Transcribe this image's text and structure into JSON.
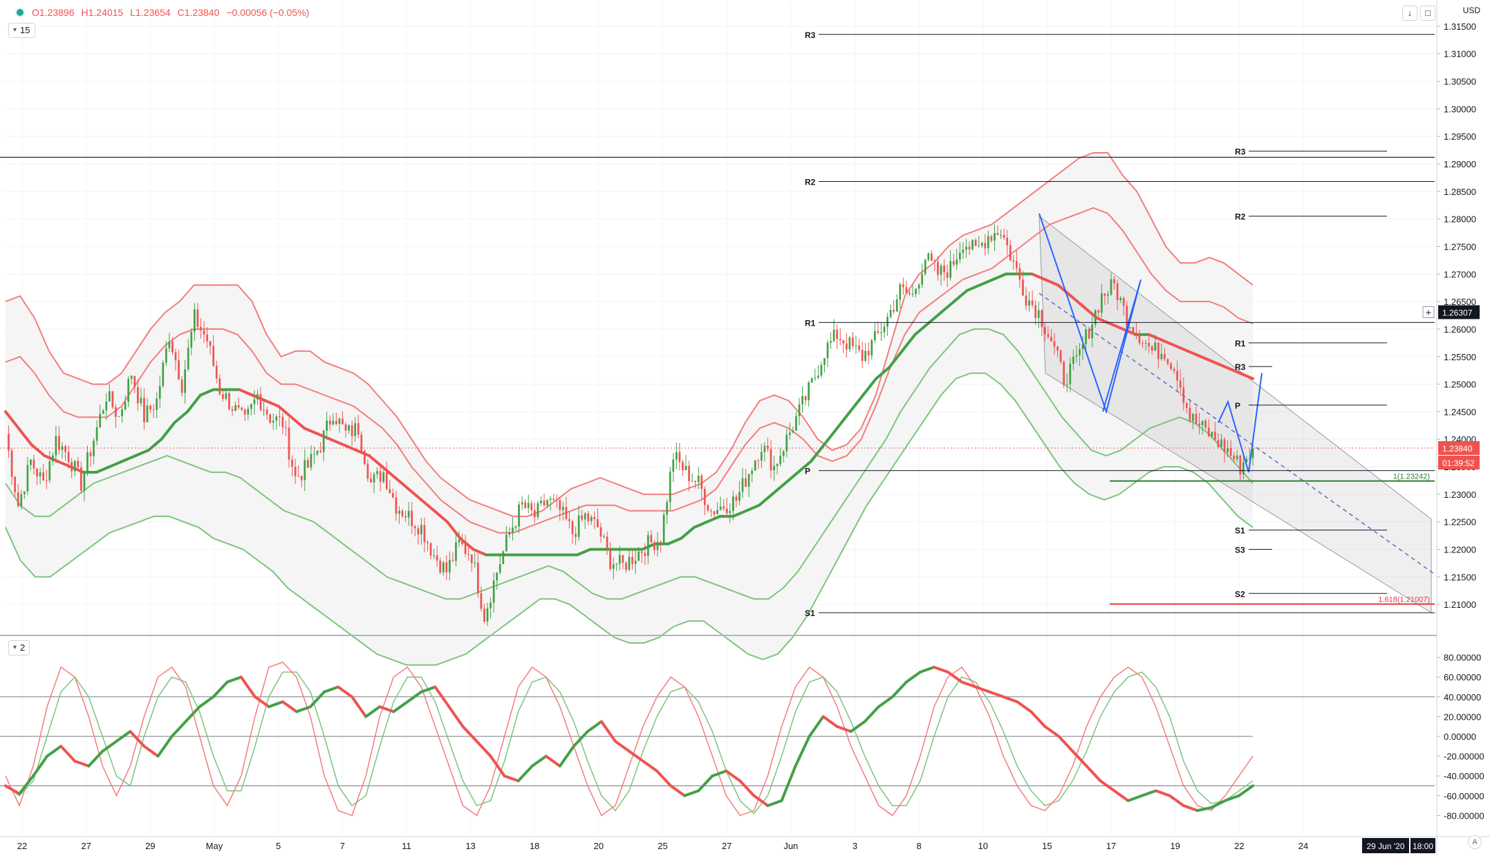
{
  "toolbar": {
    "ohlc": {
      "open": "O1.23896",
      "high": "H1.24015",
      "low": "L1.23654",
      "close": "C1.23840",
      "change": "−0.00056 (−0.05%)"
    },
    "price_pane_tag": "15",
    "osc_pane_tag": "2",
    "currency": "USD",
    "icons": [
      "circle-status-icon",
      "chevron-down-icon",
      "download-arrow-icon",
      "fullscreen-icon",
      "crosshair-plus-icon",
      "auto-scale-icon"
    ],
    "auto_label": "A"
  },
  "colors": {
    "up": "#26a69a",
    "down": "#ef5350",
    "ma_up": "#43a047",
    "ma_down": "#ef5350",
    "band_red": "#f47c7c",
    "band_green": "#7cc47c",
    "blue": "#2962ff",
    "dark": "#131722",
    "fib_green": "#2e7d32",
    "fib_red": "#e53935"
  },
  "chart_data": {
    "type": "candlestick",
    "y_axis": {
      "min": 1.2045,
      "max": 1.3195,
      "ticks": [
        "1.31500",
        "1.31000",
        "1.30500",
        "1.30000",
        "1.29500",
        "1.29000",
        "1.28500",
        "1.28000",
        "1.27500",
        "1.27000",
        "1.26500",
        "1.26000",
        "1.25500",
        "1.25000",
        "1.24500",
        "1.24000",
        "1.23500",
        "1.23000",
        "1.22500",
        "1.22000",
        "1.21500",
        "1.21000"
      ]
    },
    "x_axis": {
      "ticks": [
        "22",
        "27",
        "29",
        "May",
        "5",
        "7",
        "11",
        "13",
        "18",
        "20",
        "25",
        "27",
        "Jun",
        "3",
        "8",
        "10",
        "15",
        "17",
        "19",
        "22",
        "24"
      ],
      "cursor_date": "29 Jun '20",
      "cursor_time": "18:00"
    },
    "price_markers": [
      {
        "price": 1.26307,
        "label": "1.26307",
        "kind": "crosshair"
      },
      {
        "price": 1.2384,
        "label": "1.23840",
        "kind": "last",
        "countdown": "01:39:52"
      }
    ],
    "close_path": [
      1.241,
      1.228,
      1.236,
      1.232,
      1.24,
      1.237,
      1.232,
      1.24,
      1.248,
      1.244,
      1.252,
      1.244,
      1.247,
      1.259,
      1.25,
      1.262,
      1.258,
      1.249,
      1.246,
      1.243,
      1.248,
      1.244,
      1.243,
      1.233,
      1.235,
      1.239,
      1.245,
      1.241,
      1.242,
      1.232,
      1.234,
      1.228,
      1.226,
      1.224,
      1.219,
      1.216,
      1.221,
      1.219,
      1.208,
      1.216,
      1.223,
      1.228,
      1.226,
      1.229,
      1.227,
      1.223,
      1.226,
      1.224,
      1.218,
      1.217,
      1.219,
      1.221,
      1.222,
      1.237,
      1.234,
      1.232,
      1.227,
      1.228,
      1.229,
      1.234,
      1.239,
      1.235,
      1.24,
      1.245,
      1.25,
      1.256,
      1.259,
      1.257,
      1.255,
      1.258,
      1.262,
      1.267,
      1.266,
      1.273,
      1.27,
      1.271,
      1.276,
      1.274,
      1.277,
      1.278,
      1.272,
      1.266,
      1.263,
      1.258,
      1.251,
      1.254,
      1.26,
      1.266,
      1.268,
      1.262,
      1.259,
      1.256,
      1.256,
      1.252,
      1.244,
      1.242,
      1.24,
      1.238,
      1.235,
      1.2384
    ],
    "ma_series": [
      {
        "name": "",
        "values": [
          1.245,
          1.242,
          1.239,
          1.237,
          1.236,
          1.235,
          1.234,
          1.234,
          1.235,
          1.236,
          1.237,
          1.238,
          1.24,
          1.243,
          1.245,
          1.248,
          1.249,
          1.249,
          1.249,
          1.248,
          1.247,
          1.246,
          1.244,
          1.242,
          1.241,
          1.24,
          1.239,
          1.238,
          1.237,
          1.235,
          1.233,
          1.231,
          1.229,
          1.227,
          1.225,
          1.222,
          1.22,
          1.219,
          1.219,
          1.219,
          1.219,
          1.219,
          1.219,
          1.219,
          1.219,
          1.22,
          1.22,
          1.22,
          1.22,
          1.22,
          1.221,
          1.221,
          1.222,
          1.224,
          1.225,
          1.226,
          1.226,
          1.227,
          1.228,
          1.23,
          1.232,
          1.234,
          1.236,
          1.239,
          1.242,
          1.245,
          1.248,
          1.251,
          1.253,
          1.256,
          1.259,
          1.261,
          1.263,
          1.265,
          1.267,
          1.268,
          1.269,
          1.27,
          1.27,
          1.27,
          1.269,
          1.268,
          1.266,
          1.264,
          1.262,
          1.261,
          1.26,
          1.259,
          1.259,
          1.258,
          1.257,
          1.256,
          1.255,
          1.254,
          1.253,
          1.252,
          1.251
        ]
      }
    ],
    "bands": {
      "outer_upper": [
        1.265,
        1.266,
        1.262,
        1.256,
        1.252,
        1.251,
        1.25,
        1.25,
        1.252,
        1.256,
        1.26,
        1.263,
        1.265,
        1.268,
        1.268,
        1.268,
        1.268,
        1.265,
        1.259,
        1.255,
        1.256,
        1.256,
        1.254,
        1.253,
        1.252,
        1.25,
        1.247,
        1.244,
        1.24,
        1.236,
        1.233,
        1.231,
        1.229,
        1.228,
        1.227,
        1.226,
        1.226,
        1.227,
        1.229,
        1.231,
        1.232,
        1.233,
        1.232,
        1.231,
        1.23,
        1.23,
        1.23,
        1.231,
        1.232,
        1.234,
        1.238,
        1.243,
        1.247,
        1.248,
        1.247,
        1.244,
        1.24,
        1.238,
        1.239,
        1.242,
        1.248,
        1.257,
        1.266,
        1.27,
        1.272,
        1.275,
        1.277,
        1.278,
        1.279,
        1.281,
        1.283,
        1.285,
        1.287,
        1.289,
        1.291,
        1.292,
        1.292,
        1.288,
        1.285,
        1.28,
        1.275,
        1.272,
        1.272,
        1.273,
        1.272,
        1.27,
        1.268
      ],
      "inner_upper": [
        1.254,
        1.255,
        1.252,
        1.248,
        1.245,
        1.244,
        1.244,
        1.244,
        1.246,
        1.25,
        1.254,
        1.257,
        1.259,
        1.26,
        1.26,
        1.26,
        1.259,
        1.256,
        1.252,
        1.25,
        1.25,
        1.249,
        1.248,
        1.247,
        1.246,
        1.244,
        1.242,
        1.239,
        1.235,
        1.232,
        1.229,
        1.227,
        1.225,
        1.224,
        1.223,
        1.223,
        1.224,
        1.225,
        1.226,
        1.227,
        1.228,
        1.228,
        1.228,
        1.227,
        1.227,
        1.227,
        1.227,
        1.228,
        1.229,
        1.231,
        1.235,
        1.239,
        1.242,
        1.243,
        1.242,
        1.24,
        1.237,
        1.236,
        1.237,
        1.24,
        1.246,
        1.253,
        1.259,
        1.263,
        1.265,
        1.267,
        1.269,
        1.27,
        1.271,
        1.273,
        1.275,
        1.277,
        1.279,
        1.28,
        1.281,
        1.282,
        1.281,
        1.278,
        1.274,
        1.27,
        1.267,
        1.265,
        1.265,
        1.265,
        1.264,
        1.262,
        1.261
      ],
      "inner_lower": [
        1.232,
        1.228,
        1.226,
        1.226,
        1.228,
        1.23,
        1.232,
        1.233,
        1.234,
        1.235,
        1.236,
        1.237,
        1.236,
        1.235,
        1.234,
        1.234,
        1.233,
        1.231,
        1.229,
        1.227,
        1.226,
        1.225,
        1.223,
        1.221,
        1.219,
        1.217,
        1.215,
        1.214,
        1.213,
        1.212,
        1.211,
        1.211,
        1.212,
        1.213,
        1.214,
        1.215,
        1.216,
        1.217,
        1.216,
        1.214,
        1.212,
        1.211,
        1.211,
        1.212,
        1.213,
        1.214,
        1.215,
        1.215,
        1.214,
        1.213,
        1.212,
        1.211,
        1.211,
        1.213,
        1.216,
        1.22,
        1.224,
        1.228,
        1.232,
        1.236,
        1.24,
        1.245,
        1.249,
        1.253,
        1.256,
        1.259,
        1.26,
        1.26,
        1.259,
        1.256,
        1.252,
        1.248,
        1.244,
        1.241,
        1.238,
        1.237,
        1.238,
        1.24,
        1.242,
        1.243,
        1.244,
        1.243,
        1.241,
        1.238,
        1.235,
        1.232
      ],
      "outer_lower": [
        1.224,
        1.218,
        1.215,
        1.215,
        1.217,
        1.219,
        1.221,
        1.223,
        1.224,
        1.225,
        1.226,
        1.226,
        1.225,
        1.224,
        1.222,
        1.221,
        1.22,
        1.218,
        1.216,
        1.213,
        1.211,
        1.209,
        1.207,
        1.205,
        1.203,
        1.201,
        1.2,
        1.199,
        1.199,
        1.199,
        1.2,
        1.201,
        1.203,
        1.205,
        1.207,
        1.209,
        1.211,
        1.211,
        1.21,
        1.208,
        1.206,
        1.204,
        1.203,
        1.203,
        1.204,
        1.206,
        1.207,
        1.207,
        1.205,
        1.203,
        1.201,
        1.2,
        1.201,
        1.204,
        1.208,
        1.213,
        1.218,
        1.223,
        1.228,
        1.232,
        1.236,
        1.24,
        1.244,
        1.248,
        1.251,
        1.252,
        1.252,
        1.25,
        1.247,
        1.243,
        1.239,
        1.235,
        1.232,
        1.23,
        1.229,
        1.23,
        1.232,
        1.234,
        1.235,
        1.235,
        1.234,
        1.232,
        1.229,
        1.226,
        1.224
      ]
    },
    "pivot_levels": [
      {
        "label": "R3",
        "price": 1.3135,
        "segment": "left"
      },
      {
        "label": "R2",
        "price": 1.2868,
        "segment": "left"
      },
      {
        "label": "R1",
        "price": 1.2612,
        "segment": "left"
      },
      {
        "label": "P",
        "price": 1.2343,
        "segment": "left"
      },
      {
        "label": "S1",
        "price": 1.2085,
        "segment": "left"
      },
      {
        "label": "R3",
        "price": 1.2923,
        "segment": "right"
      },
      {
        "label": "R2",
        "price": 1.2805,
        "segment": "right"
      },
      {
        "label": "R1",
        "price": 1.2575,
        "segment": "right"
      },
      {
        "label": "R3",
        "price": 1.2532,
        "segment": "right_short"
      },
      {
        "label": "P",
        "price": 1.2462,
        "segment": "right"
      },
      {
        "label": "S1",
        "price": 1.2235,
        "segment": "right"
      },
      {
        "label": "S3",
        "price": 1.22,
        "segment": "right_short"
      },
      {
        "label": "S2",
        "price": 1.212,
        "segment": "right"
      }
    ],
    "horizontal_line_price": 1.2912,
    "fib_levels": [
      {
        "label": "1(1.23242)",
        "price": 1.23242,
        "color": "green"
      },
      {
        "label": "1.618(1.21007)",
        "price": 1.21007,
        "color": "red"
      }
    ],
    "oscillator": {
      "y_min": -100,
      "y_max": 100,
      "ticks": [
        "80.00000",
        "60.00000",
        "40.00000",
        "20.00000",
        "0.00000",
        "-20.00000",
        "-40.00000",
        "-60.00000",
        "-80.00000"
      ],
      "levels": [
        40,
        0,
        -50
      ],
      "main": [
        -50,
        -58,
        -40,
        -20,
        -10,
        -25,
        -30,
        -15,
        -5,
        5,
        -10,
        -20,
        0,
        15,
        30,
        40,
        55,
        60,
        40,
        30,
        35,
        25,
        30,
        45,
        50,
        40,
        20,
        30,
        25,
        35,
        45,
        50,
        30,
        10,
        -5,
        -20,
        -40,
        -45,
        -30,
        -20,
        -30,
        -10,
        5,
        15,
        -5,
        -15,
        -25,
        -35,
        -50,
        -60,
        -55,
        -40,
        -35,
        -45,
        -60,
        -70,
        -65,
        -30,
        0,
        20,
        10,
        5,
        15,
        30,
        40,
        55,
        65,
        70,
        65,
        55,
        50,
        45,
        40,
        35,
        25,
        10,
        0,
        -15,
        -30,
        -45,
        -55,
        -65,
        -60,
        -55,
        -60,
        -70,
        -75,
        -72,
        -65,
        -60,
        -50
      ],
      "fast": [
        -40,
        -70,
        -30,
        30,
        70,
        60,
        20,
        -30,
        -60,
        -30,
        20,
        60,
        70,
        50,
        0,
        -50,
        -70,
        -40,
        20,
        70,
        75,
        60,
        20,
        -40,
        -75,
        -80,
        -40,
        20,
        60,
        70,
        50,
        10,
        -30,
        -70,
        -80,
        -50,
        0,
        50,
        70,
        60,
        30,
        -10,
        -50,
        -80,
        -70,
        -30,
        10,
        40,
        60,
        50,
        20,
        -20,
        -60,
        -80,
        -75,
        -40,
        10,
        50,
        70,
        60,
        30,
        -10,
        -40,
        -70,
        -80,
        -60,
        -20,
        30,
        60,
        70,
        50,
        20,
        -20,
        -50,
        -70,
        -75,
        -60,
        -30,
        10,
        40,
        60,
        70,
        60,
        30,
        -10,
        -50,
        -70,
        -75,
        -60,
        -40,
        -20
      ],
      "slow": [
        -50,
        -60,
        -45,
        0,
        45,
        60,
        40,
        0,
        -40,
        -50,
        0,
        40,
        60,
        55,
        25,
        -20,
        -55,
        -55,
        -10,
        40,
        65,
        65,
        45,
        0,
        -50,
        -70,
        -60,
        -10,
        35,
        60,
        60,
        35,
        -5,
        -45,
        -70,
        -65,
        -25,
        25,
        55,
        60,
        45,
        15,
        -25,
        -60,
        -75,
        -55,
        -15,
        20,
        45,
        50,
        35,
        5,
        -35,
        -65,
        -78,
        -60,
        -20,
        25,
        55,
        60,
        45,
        15,
        -20,
        -50,
        -70,
        -70,
        -45,
        0,
        40,
        60,
        55,
        35,
        5,
        -30,
        -55,
        -70,
        -65,
        -45,
        -15,
        20,
        45,
        60,
        65,
        50,
        20,
        -25,
        -55,
        -68,
        -65,
        -55,
        -45
      ]
    }
  }
}
